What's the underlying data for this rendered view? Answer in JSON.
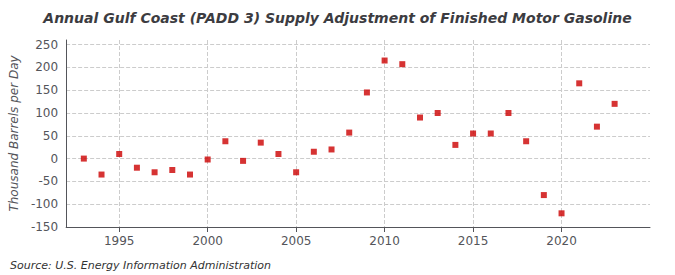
{
  "chart_data": {
    "type": "scatter",
    "title": "Annual Gulf Coast (PADD 3) Supply Adjustment of Finished Motor Gasoline",
    "ylabel": "Thousand Barrels per Day",
    "annotations": [
      "Source: U.S. Energy Information Administration"
    ],
    "x": [
      1993,
      1994,
      1995,
      1996,
      1997,
      1998,
      1999,
      2000,
      2001,
      2002,
      2003,
      2004,
      2005,
      2006,
      2007,
      2008,
      2009,
      2010,
      2011,
      2012,
      2013,
      2014,
      2015,
      2016,
      2017,
      2018,
      2019,
      2020,
      2021,
      2022,
      2023
    ],
    "values": [
      0,
      -35,
      10,
      -20,
      -30,
      -25,
      -35,
      -2,
      38,
      -5,
      35,
      10,
      -30,
      15,
      20,
      57,
      145,
      215,
      207,
      90,
      100,
      30,
      55,
      55,
      100,
      38,
      -80,
      -120,
      165,
      70,
      120
    ],
    "xlim": [
      1992,
      2025
    ],
    "ylim": [
      -150,
      260
    ],
    "xticks": [
      1995,
      2000,
      2005,
      2010,
      2015,
      2020
    ],
    "yticks": [
      -150,
      -100,
      -50,
      0,
      50,
      100,
      150,
      200,
      250
    ],
    "color": "#cc0000",
    "marker": "square",
    "grid": true
  }
}
